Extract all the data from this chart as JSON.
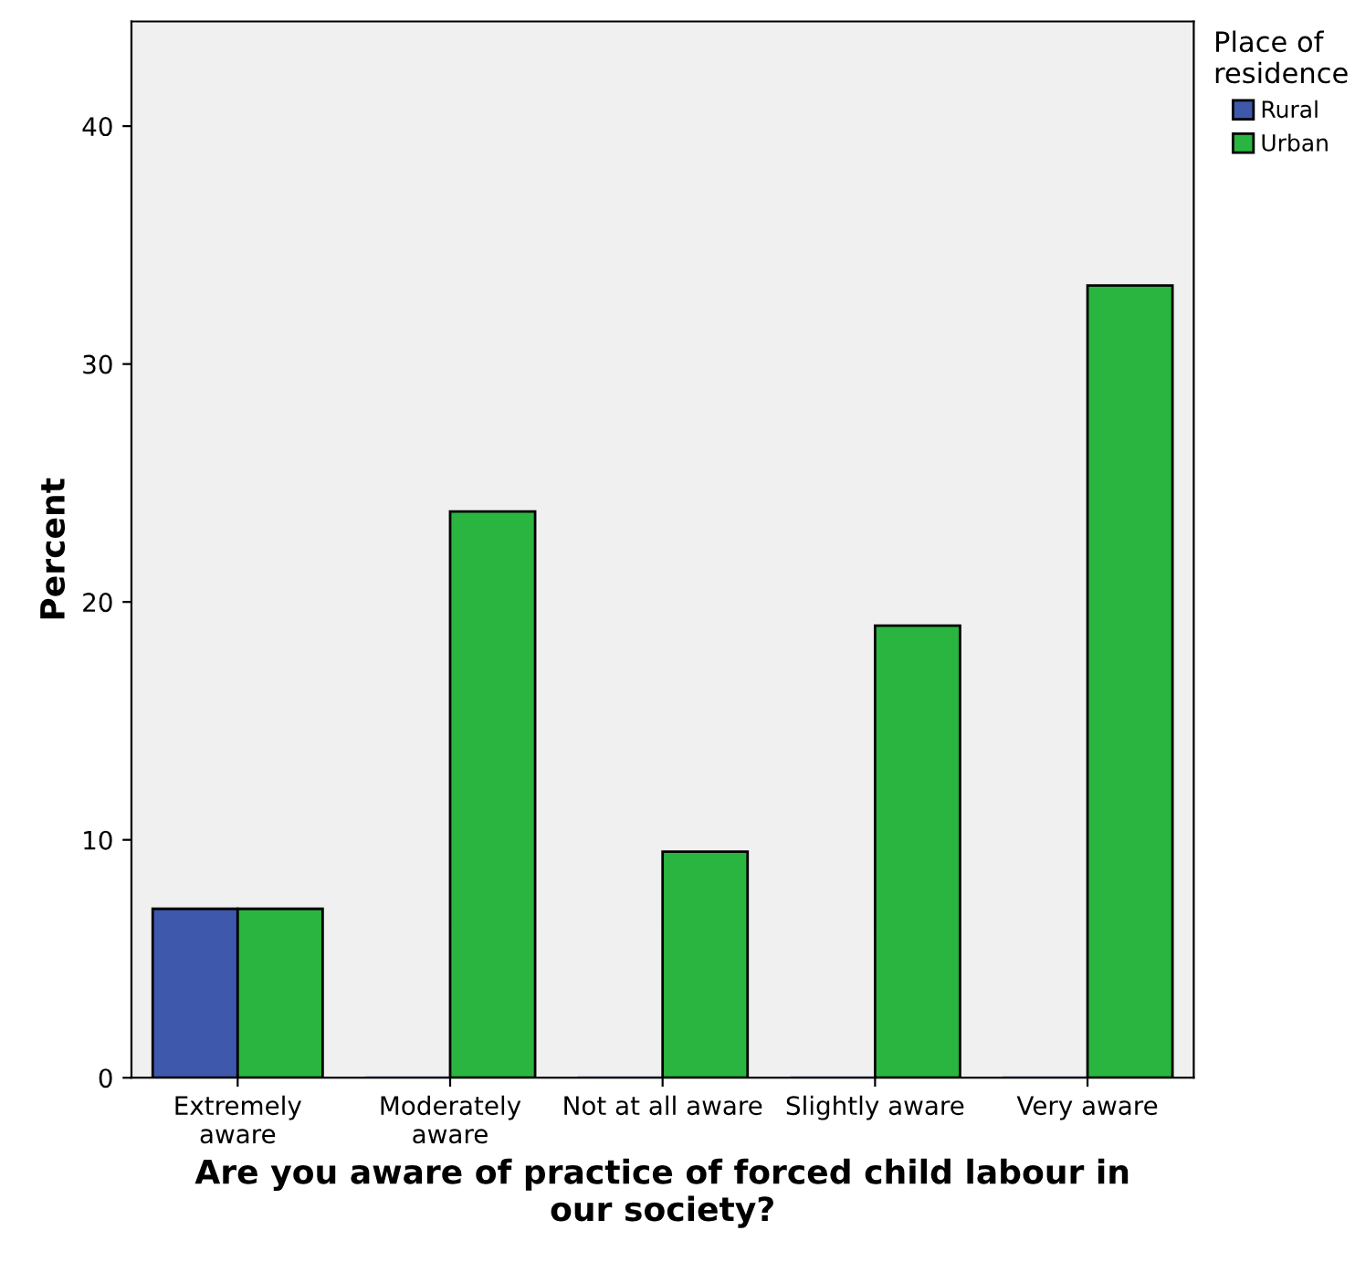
{
  "chart_data": {
    "type": "bar",
    "categories": [
      "Extremely\naware",
      "Moderately\naware",
      "Not at all aware",
      "Slightly aware",
      "Very aware"
    ],
    "series": [
      {
        "name": "Rural",
        "color": "#3e58ac",
        "values": [
          7.1,
          0,
          0,
          0,
          0
        ]
      },
      {
        "name": "Urban",
        "color": "#2ab540",
        "values": [
          7.1,
          23.8,
          9.5,
          19.0,
          33.3
        ]
      }
    ],
    "xlabel": "Are you aware of practice of forced child labour in\nour society?",
    "ylabel": "Percent",
    "legend_title": "Place of\nresidence",
    "legend": "top right",
    "ylim": [
      0,
      44.4
    ],
    "yticks": [
      0,
      10,
      20,
      30,
      40
    ],
    "grid": false
  }
}
